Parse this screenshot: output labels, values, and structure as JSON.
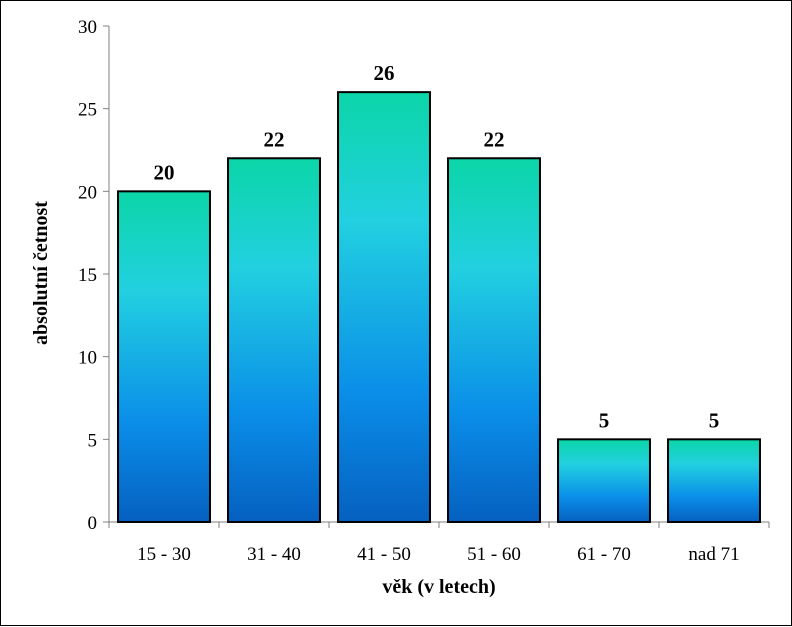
{
  "chart_data": {
    "type": "bar",
    "title": "",
    "xlabel": "věk (v letech)",
    "ylabel": "absolutní četnost",
    "categories": [
      "15 - 30",
      "31 - 40",
      "41 - 50",
      "51 - 60",
      "61 - 70",
      "nad 71"
    ],
    "values": [
      20,
      22,
      26,
      22,
      5,
      5
    ],
    "data_labels": [
      "20",
      "22",
      "26",
      "22",
      "5",
      "5"
    ],
    "ylim": [
      0,
      30
    ],
    "yticks": [
      0,
      5,
      10,
      15,
      20,
      25,
      30
    ],
    "grid": false,
    "legend": "none",
    "colors": {
      "bar_top": "#0bd6a8",
      "bar_mid": "#22d0e0",
      "bar_low": "#0a8ee8",
      "bar_bottom": "#0660c0",
      "outline": "#000000"
    }
  }
}
